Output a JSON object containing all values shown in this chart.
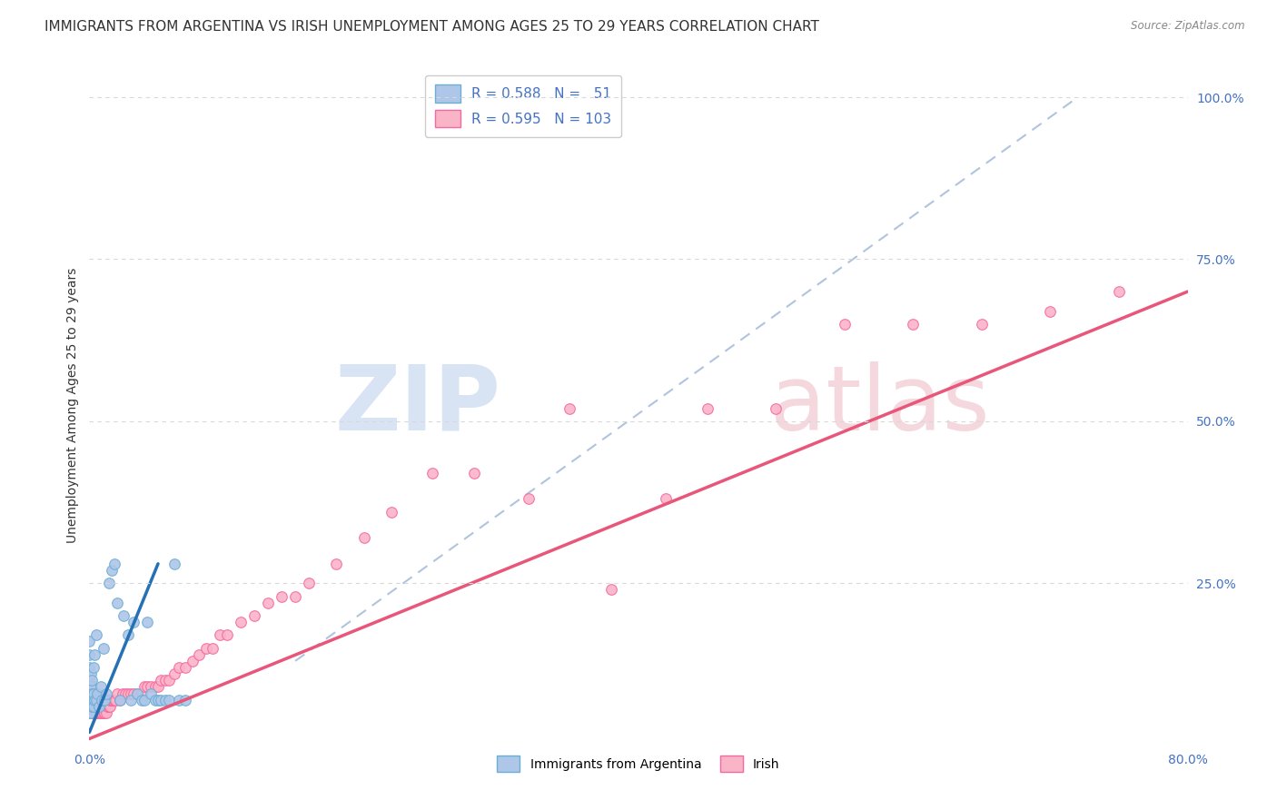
{
  "title": "IMMIGRANTS FROM ARGENTINA VS IRISH UNEMPLOYMENT AMONG AGES 25 TO 29 YEARS CORRELATION CHART",
  "source": "Source: ZipAtlas.com",
  "ylabel": "Unemployment Among Ages 25 to 29 years",
  "xlim": [
    0.0,
    0.8
  ],
  "ylim": [
    0.0,
    1.05
  ],
  "argentina_scatter_x": [
    0.0,
    0.0,
    0.0,
    0.0,
    0.0,
    0.0,
    0.0,
    0.0,
    0.001,
    0.001,
    0.001,
    0.001,
    0.002,
    0.002,
    0.002,
    0.003,
    0.003,
    0.003,
    0.004,
    0.004,
    0.005,
    0.005,
    0.006,
    0.007,
    0.008,
    0.009,
    0.01,
    0.011,
    0.012,
    0.014,
    0.016,
    0.018,
    0.02,
    0.022,
    0.025,
    0.028,
    0.03,
    0.032,
    0.035,
    0.038,
    0.04,
    0.042,
    0.045,
    0.048,
    0.05,
    0.052,
    0.055,
    0.058,
    0.062,
    0.065,
    0.07
  ],
  "argentina_scatter_y": [
    0.05,
    0.06,
    0.07,
    0.08,
    0.1,
    0.12,
    0.14,
    0.16,
    0.05,
    0.07,
    0.09,
    0.11,
    0.06,
    0.08,
    0.1,
    0.06,
    0.08,
    0.12,
    0.07,
    0.14,
    0.07,
    0.17,
    0.08,
    0.06,
    0.09,
    0.07,
    0.15,
    0.07,
    0.08,
    0.25,
    0.27,
    0.28,
    0.22,
    0.07,
    0.2,
    0.17,
    0.07,
    0.19,
    0.08,
    0.07,
    0.07,
    0.19,
    0.08,
    0.07,
    0.07,
    0.07,
    0.07,
    0.07,
    0.28,
    0.07,
    0.07
  ],
  "irish_scatter_x": [
    0.0,
    0.0,
    0.0,
    0.0,
    0.0,
    0.001,
    0.001,
    0.001,
    0.001,
    0.001,
    0.002,
    0.002,
    0.002,
    0.002,
    0.002,
    0.003,
    0.003,
    0.003,
    0.003,
    0.004,
    0.004,
    0.004,
    0.004,
    0.005,
    0.005,
    0.005,
    0.005,
    0.006,
    0.006,
    0.006,
    0.007,
    0.007,
    0.007,
    0.008,
    0.008,
    0.008,
    0.009,
    0.009,
    0.009,
    0.01,
    0.01,
    0.011,
    0.011,
    0.012,
    0.012,
    0.013,
    0.013,
    0.014,
    0.014,
    0.015,
    0.015,
    0.016,
    0.017,
    0.018,
    0.019,
    0.02,
    0.022,
    0.024,
    0.026,
    0.028,
    0.03,
    0.032,
    0.035,
    0.038,
    0.04,
    0.042,
    0.045,
    0.048,
    0.05,
    0.052,
    0.055,
    0.058,
    0.062,
    0.065,
    0.07,
    0.075,
    0.08,
    0.085,
    0.09,
    0.095,
    0.1,
    0.11,
    0.12,
    0.13,
    0.14,
    0.15,
    0.16,
    0.18,
    0.2,
    0.22,
    0.25,
    0.28,
    0.32,
    0.35,
    0.38,
    0.42,
    0.45,
    0.5,
    0.55,
    0.6,
    0.65,
    0.7,
    0.75
  ],
  "irish_scatter_y": [
    0.05,
    0.06,
    0.07,
    0.08,
    0.09,
    0.05,
    0.06,
    0.07,
    0.08,
    0.09,
    0.05,
    0.06,
    0.07,
    0.08,
    0.09,
    0.05,
    0.06,
    0.07,
    0.08,
    0.05,
    0.06,
    0.07,
    0.08,
    0.05,
    0.06,
    0.07,
    0.08,
    0.05,
    0.06,
    0.07,
    0.05,
    0.06,
    0.07,
    0.05,
    0.06,
    0.07,
    0.05,
    0.06,
    0.07,
    0.05,
    0.07,
    0.05,
    0.07,
    0.05,
    0.07,
    0.06,
    0.07,
    0.06,
    0.07,
    0.06,
    0.07,
    0.07,
    0.07,
    0.07,
    0.07,
    0.08,
    0.07,
    0.08,
    0.08,
    0.08,
    0.08,
    0.08,
    0.08,
    0.08,
    0.09,
    0.09,
    0.09,
    0.09,
    0.09,
    0.1,
    0.1,
    0.1,
    0.11,
    0.12,
    0.12,
    0.13,
    0.14,
    0.15,
    0.15,
    0.17,
    0.17,
    0.19,
    0.2,
    0.22,
    0.23,
    0.23,
    0.25,
    0.28,
    0.32,
    0.36,
    0.42,
    0.42,
    0.38,
    0.52,
    0.24,
    0.38,
    0.52,
    0.52,
    0.65,
    0.65,
    0.65,
    0.67,
    0.7
  ],
  "blue_line_x": [
    0.0,
    0.05
  ],
  "blue_line_y": [
    0.02,
    0.28
  ],
  "pink_line_x": [
    0.0,
    0.8
  ],
  "pink_line_y": [
    0.01,
    0.7
  ],
  "dashed_line_x": [
    0.15,
    0.72
  ],
  "dashed_line_y": [
    0.13,
    1.0
  ],
  "scatter_size": 70,
  "blue_color": "#6baed6",
  "blue_fill": "#aec6e8",
  "pink_color": "#f768a1",
  "pink_fill": "#f9b4c8",
  "bg_color": "#ffffff",
  "grid_color": "#d8d8d8",
  "watermark_zip": "ZIP",
  "watermark_atlas": "atlas",
  "title_fontsize": 11,
  "axis_label_fontsize": 10
}
